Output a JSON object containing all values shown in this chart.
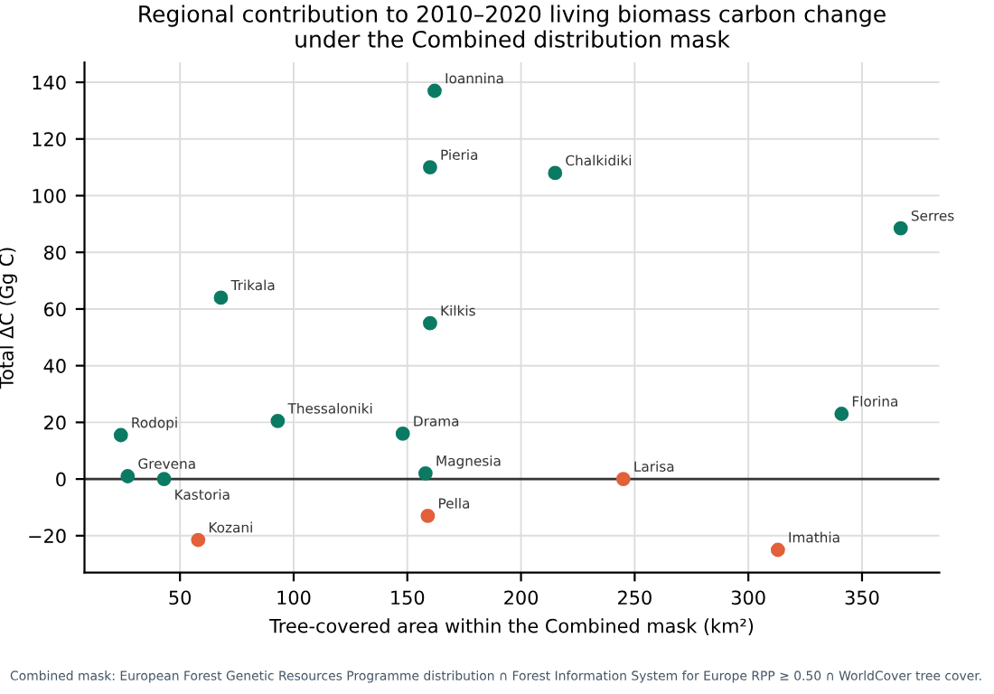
{
  "chart_data": {
    "type": "scatter",
    "title": "Regional contribution to 2010–2020 living biomass carbon change\nunder the Combined distribution mask",
    "xlabel": "Tree-covered area within the Combined mask (km²)",
    "ylabel": "Total ΔC (Gg C)",
    "series": [
      {
        "color": "#0b7a63",
        "x": [
          162,
          160,
          215,
          367,
          68,
          160,
          93,
          148,
          24,
          341,
          27,
          43,
          158
        ],
        "values": [
          137,
          110,
          108,
          88.5,
          64,
          55,
          20.5,
          16,
          15.5,
          23,
          1,
          0,
          2
        ]
      },
      {
        "color": "#e2603a",
        "x": [
          245,
          58,
          159,
          313
        ],
        "values": [
          0,
          -21.5,
          -13,
          -25
        ]
      }
    ],
    "annotations": [
      {
        "text": "Ioannina",
        "x": 162,
        "y": 137
      },
      {
        "text": "Pieria",
        "x": 160,
        "y": 110
      },
      {
        "text": "Chalkidiki",
        "x": 215,
        "y": 108
      },
      {
        "text": "Serres",
        "x": 367,
        "y": 88.5
      },
      {
        "text": "Trikala",
        "x": 68,
        "y": 64
      },
      {
        "text": "Kilkis",
        "x": 160,
        "y": 55
      },
      {
        "text": "Thessaloniki",
        "x": 93,
        "y": 20.5
      },
      {
        "text": "Drama",
        "x": 148,
        "y": 16
      },
      {
        "text": "Rodopi",
        "x": 24,
        "y": 15.5
      },
      {
        "text": "Florina",
        "x": 341,
        "y": 23
      },
      {
        "text": "Grevena",
        "x": 27,
        "y": 1
      },
      {
        "text": "Kastoria",
        "x": 43,
        "y": 0
      },
      {
        "text": "Magnesia",
        "x": 158,
        "y": 2
      },
      {
        "text": "Larisa",
        "x": 245,
        "y": 0
      },
      {
        "text": "Kozani",
        "x": 58,
        "y": -21.5
      },
      {
        "text": "Pella",
        "x": 159,
        "y": -13
      },
      {
        "text": "Imathia",
        "x": 313,
        "y": -25
      },
      "Combined mask: European Forest Genetic Resources Programme distribution ∩ Forest Information System for Europe RPP ≥ 0.50 ∩ WorldCover tree cover."
    ],
    "ref_lines": [
      {
        "axis": "y",
        "value": 0,
        "color": "#333333"
      }
    ],
    "xlim": [
      8,
      384
    ],
    "ylim": [
      -33,
      147
    ],
    "xticks": [
      50,
      100,
      150,
      200,
      250,
      300,
      350
    ],
    "yticks": [
      -20,
      0,
      20,
      40,
      60,
      80,
      100,
      120,
      140
    ],
    "grid": true,
    "marker": "circle"
  }
}
